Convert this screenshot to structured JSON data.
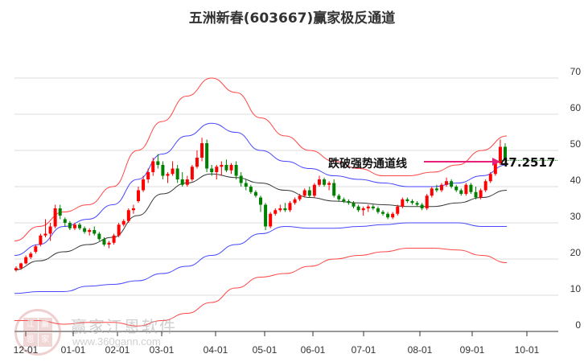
{
  "title": "五洲新春(603667)赢家极反通道",
  "annotation": {
    "label": "跌破强势通道线",
    "price_label": "47.2517",
    "arrow_color": "#e8207a"
  },
  "watermark": {
    "brand": "赢家江恩软件",
    "url": "www.360gann.com",
    "logo_chars": [
      "江",
      "赢",
      "恩",
      "家"
    ]
  },
  "colors": {
    "up": "#ff0000",
    "down": "#008000",
    "outer_band": "#ff3333",
    "inner_band": "#3333ff",
    "mid_line": "#222222",
    "grid": "#dddddd",
    "price_line": "#008000"
  },
  "chart_data": {
    "type": "candlestick",
    "title": "五洲新春(603667)赢家极反通道",
    "xlabel": "",
    "ylabel": "",
    "ylim": [
      0,
      70
    ],
    "y_ticks": [
      0,
      10,
      20,
      30,
      40,
      50,
      60,
      70
    ],
    "x_ticks": [
      "12-01",
      "01-01",
      "02-01",
      "03-01",
      "04-01",
      "05-01",
      "06-01",
      "07-01",
      "08-01",
      "09-01",
      "10-01"
    ],
    "grid": true,
    "horizontal_reference": {
      "value": 47.2517,
      "style": "dotted",
      "color": "#008000"
    },
    "series": [
      {
        "name": "outer_upper",
        "color": "#ff3333",
        "x": [
          "12-01",
          "12-15",
          "01-01",
          "01-15",
          "02-01",
          "02-15",
          "03-01",
          "03-15",
          "04-01",
          "04-15",
          "05-01",
          "05-15",
          "06-01",
          "06-15",
          "07-01",
          "07-15",
          "08-01",
          "08-15",
          "09-01",
          "09-15",
          "09-20"
        ],
        "values": [
          25,
          29,
          33,
          35,
          40,
          50,
          58,
          65,
          70,
          66,
          59,
          54,
          50,
          47,
          45,
          43,
          43,
          44,
          46,
          50,
          54
        ]
      },
      {
        "name": "inner_upper",
        "color": "#3333ff",
        "x": [
          "12-01",
          "12-15",
          "01-01",
          "01-15",
          "02-01",
          "02-15",
          "03-01",
          "03-15",
          "04-01",
          "04-15",
          "05-01",
          "05-15",
          "06-01",
          "06-15",
          "07-01",
          "07-15",
          "08-01",
          "08-15",
          "09-01",
          "09-15",
          "09-20"
        ],
        "values": [
          21,
          24,
          29,
          31,
          35,
          42,
          49,
          54,
          57.5,
          55,
          50,
          47,
          45,
          43,
          42,
          41,
          40,
          40,
          41,
          43,
          46
        ]
      },
      {
        "name": "middle",
        "color": "#222222",
        "x": [
          "12-01",
          "12-15",
          "01-01",
          "01-15",
          "02-01",
          "02-15",
          "03-01",
          "03-15",
          "04-01",
          "04-15",
          "05-01",
          "05-15",
          "06-01",
          "06-15",
          "07-01",
          "07-15",
          "08-01",
          "08-15",
          "09-01",
          "09-15",
          "09-20"
        ],
        "values": [
          17,
          19.5,
          22,
          24,
          26,
          32,
          38,
          41,
          43.5,
          42.5,
          41,
          39,
          37,
          36,
          35.5,
          35,
          34.5,
          34.5,
          35.5,
          37,
          39
        ]
      },
      {
        "name": "inner_lower",
        "color": "#3333ff",
        "x": [
          "12-01",
          "12-15",
          "01-01",
          "01-15",
          "02-01",
          "02-15",
          "03-01",
          "03-15",
          "04-01",
          "04-15",
          "05-01",
          "05-15",
          "06-01",
          "06-15",
          "07-01",
          "07-15",
          "08-01",
          "08-15",
          "09-01",
          "09-15",
          "09-20"
        ],
        "values": [
          10.5,
          11,
          11,
          12.5,
          13,
          14,
          16,
          18,
          21,
          24,
          27,
          29,
          28.5,
          28.5,
          29,
          29.5,
          30,
          30,
          30,
          29,
          29
        ]
      },
      {
        "name": "outer_lower",
        "color": "#ff3333",
        "x": [
          "12-01",
          "12-15",
          "01-01",
          "01-15",
          "02-01",
          "02-15",
          "03-01",
          "03-15",
          "04-01",
          "04-15",
          "05-01",
          "05-15",
          "06-01",
          "06-15",
          "07-01",
          "07-15",
          "08-01",
          "08-15",
          "09-01",
          "09-15",
          "09-20"
        ],
        "values": [
          3,
          3,
          2,
          2.5,
          2.5,
          1.5,
          3,
          5,
          8,
          12,
          15,
          16,
          18,
          20,
          21,
          22,
          23,
          23,
          22.5,
          21,
          19
        ]
      }
    ],
    "candles": {
      "x_range": [
        "12-01",
        "09-20"
      ],
      "ohlc": [
        [
          17,
          18,
          16.5,
          17.5
        ],
        [
          17.5,
          19,
          17,
          18.8
        ],
        [
          18.8,
          21,
          18.5,
          20.5
        ],
        [
          20.5,
          22,
          20,
          21.5
        ],
        [
          22,
          24,
          21.5,
          23.5
        ],
        [
          24,
          27,
          23.5,
          26.5
        ],
        [
          26.5,
          31,
          26,
          27
        ],
        [
          27,
          30,
          25,
          29
        ],
        [
          29,
          35,
          28.5,
          34
        ],
        [
          34,
          35,
          31,
          32
        ],
        [
          31,
          31.5,
          29,
          30
        ],
        [
          30,
          30.5,
          28,
          28.5
        ],
        [
          28.5,
          30,
          28,
          29.5
        ],
        [
          29.5,
          30,
          28,
          28.5
        ],
        [
          28.5,
          29,
          27,
          27.5
        ],
        [
          27.5,
          28.5,
          26.5,
          28
        ],
        [
          28,
          29,
          26.5,
          27
        ],
        [
          27,
          27.5,
          25,
          25.5
        ],
        [
          25.5,
          26,
          23.5,
          24
        ],
        [
          24,
          25,
          23,
          24.5
        ],
        [
          24.5,
          27,
          24,
          26.5
        ],
        [
          26.5,
          30,
          26,
          29.5
        ],
        [
          29.5,
          31,
          29,
          30.5
        ],
        [
          30.5,
          34,
          30,
          33.5
        ],
        [
          33.5,
          35,
          32.5,
          34
        ],
        [
          36,
          40,
          35.5,
          39
        ],
        [
          39,
          43,
          38.5,
          42
        ],
        [
          42,
          45,
          41,
          44
        ],
        [
          44,
          48,
          43,
          47
        ],
        [
          47,
          49,
          45,
          46
        ],
        [
          46,
          47,
          42,
          43
        ],
        [
          43,
          44,
          41,
          43.5
        ],
        [
          43.5,
          47,
          43,
          45
        ],
        [
          45,
          46,
          41,
          42
        ],
        [
          42,
          44,
          40,
          40.5
        ],
        [
          40.5,
          43,
          40,
          42
        ],
        [
          42,
          46,
          41.5,
          45.5
        ],
        [
          45.5,
          50,
          45,
          48
        ],
        [
          48,
          53.5,
          47,
          52
        ],
        [
          52,
          53,
          44,
          45
        ],
        [
          45,
          46,
          43,
          44
        ],
        [
          44,
          46,
          42,
          45.5
        ],
        [
          45.5,
          47,
          43,
          46
        ],
        [
          46,
          47.5,
          44,
          44.5
        ],
        [
          44.5,
          46.5,
          43.5,
          46
        ],
        [
          46,
          47,
          42,
          43
        ],
        [
          43,
          44,
          40,
          41
        ],
        [
          41,
          42,
          39,
          40
        ],
        [
          40,
          40.5,
          38,
          38.5
        ],
        [
          38.5,
          39,
          37,
          37.5
        ],
        [
          37,
          37.5,
          33,
          35
        ],
        [
          35,
          35.5,
          28,
          29
        ],
        [
          29,
          33,
          28.5,
          32.5
        ],
        [
          32.5,
          34,
          32,
          33.5
        ],
        [
          33.5,
          35,
          33,
          34
        ],
        [
          34,
          35.5,
          33,
          33.5
        ],
        [
          33.5,
          36,
          33,
          35.5
        ],
        [
          35.5,
          37,
          35,
          36.5
        ],
        [
          36.5,
          38,
          36,
          37.5
        ],
        [
          37.5,
          39.5,
          37,
          39
        ],
        [
          39,
          40,
          37,
          37.5
        ],
        [
          37.5,
          41,
          37,
          40.5
        ],
        [
          40.5,
          43,
          40,
          42
        ],
        [
          42,
          42.5,
          40,
          40.5
        ],
        [
          40.5,
          41.5,
          39,
          41
        ],
        [
          41,
          42,
          37,
          37.5
        ],
        [
          37.5,
          38,
          36,
          36.5
        ],
        [
          36.5,
          37,
          35.5,
          36
        ],
        [
          36,
          36.5,
          35,
          35.5
        ],
        [
          35.5,
          36,
          34,
          34.5
        ],
        [
          34.5,
          35,
          33,
          33.5
        ],
        [
          33.5,
          34.5,
          32,
          34
        ],
        [
          34,
          35,
          33,
          34.5
        ],
        [
          34.5,
          35,
          33.5,
          34
        ],
        [
          34,
          34.5,
          32.5,
          33
        ],
        [
          33,
          33.5,
          32,
          32.5
        ],
        [
          32.5,
          33,
          31,
          31.5
        ],
        [
          31.5,
          33,
          31,
          32.5
        ],
        [
          32.5,
          35,
          32,
          34.5
        ],
        [
          34.5,
          37,
          34,
          36.5
        ],
        [
          36.5,
          37,
          35.5,
          36
        ],
        [
          36,
          36.5,
          35,
          35.5
        ],
        [
          35.5,
          36,
          34.5,
          35
        ],
        [
          35,
          35.5,
          33.5,
          34
        ],
        [
          34,
          38,
          33.5,
          37.5
        ],
        [
          37.5,
          40,
          37,
          39.5
        ],
        [
          39.5,
          40.5,
          38.5,
          39
        ],
        [
          39,
          41,
          38.5,
          40.5
        ],
        [
          40.5,
          42.5,
          40,
          41.5
        ],
        [
          41.5,
          42,
          39.5,
          40
        ],
        [
          40,
          40.5,
          38.5,
          39
        ],
        [
          39,
          39.5,
          37.5,
          38
        ],
        [
          38,
          41,
          37.5,
          40.5
        ],
        [
          40.5,
          41,
          38,
          38.5
        ],
        [
          38.5,
          40,
          36.5,
          37
        ],
        [
          37,
          39.5,
          36.5,
          39
        ],
        [
          39,
          42,
          38.5,
          41.5
        ],
        [
          41.5,
          44,
          41,
          43.5
        ],
        [
          43.5,
          47,
          43,
          46.5
        ],
        [
          46.5,
          53,
          46,
          51
        ],
        [
          51,
          52,
          46,
          47.25
        ]
      ]
    }
  }
}
